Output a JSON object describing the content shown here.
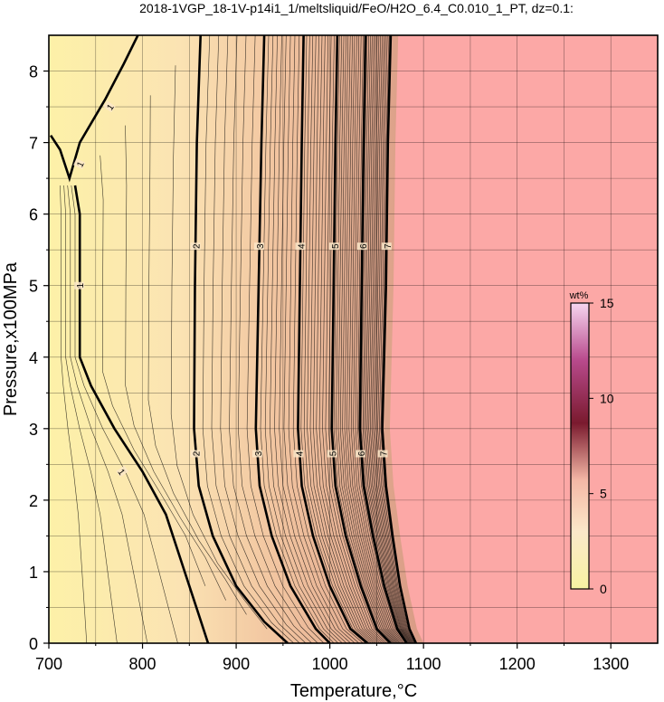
{
  "chart_data": {
    "type": "heatmap",
    "title": "2018-1VGP_18-1V-p14i1_1/meltsliquid/FeO/H2O_6.4_C0.010_1_PT, dz=0.1:",
    "xlabel": "Temperature,°C",
    "ylabel": "Pressure,x100MPa",
    "xlim": [
      700,
      1350
    ],
    "ylim": [
      0,
      8.5
    ],
    "x_ticks": [
      700,
      800,
      900,
      1000,
      1100,
      1200,
      1300
    ],
    "y_ticks": [
      0,
      1,
      2,
      3,
      4,
      5,
      6,
      7,
      8
    ],
    "grid": true,
    "colorbar": {
      "unit": "wt%",
      "range": [
        0,
        15
      ],
      "ticks": [
        0,
        5,
        10,
        15
      ],
      "colors": [
        "#f7f3a2",
        "#fbe8c9",
        "#f4b8a6",
        "#7a1a2e",
        "#b84a8c",
        "#f7d6f0"
      ]
    },
    "background_color": "#fca8a6",
    "contour_interval": 0.1,
    "labeled_contours": [
      {
        "level": 1,
        "points": [
          [
            728,
            6.4
          ],
          [
            733,
            6.0
          ],
          [
            733,
            5.0
          ],
          [
            733,
            4.0
          ],
          [
            745,
            3.6
          ],
          [
            770,
            3.0
          ],
          [
            800,
            2.4
          ],
          [
            825,
            1.8
          ],
          [
            845,
            1.0
          ],
          [
            860,
            0.4
          ],
          [
            870,
            0
          ]
        ]
      },
      {
        "level": 1,
        "points": [
          [
            702,
            7.1
          ],
          [
            712,
            6.9
          ],
          [
            722,
            6.5
          ],
          [
            733,
            7.0
          ],
          [
            760,
            7.6
          ],
          [
            780,
            8.1
          ],
          [
            795,
            8.5
          ]
        ]
      },
      {
        "level": 2,
        "points": [
          [
            862,
            8.5
          ],
          [
            858,
            7.0
          ],
          [
            856,
            5.0
          ],
          [
            855,
            3.0
          ],
          [
            860,
            2.2
          ],
          [
            875,
            1.5
          ],
          [
            900,
            0.8
          ],
          [
            930,
            0.3
          ],
          [
            955,
            0
          ]
        ]
      },
      {
        "level": 3,
        "points": [
          [
            930,
            8.5
          ],
          [
            927,
            7.0
          ],
          [
            924,
            5.0
          ],
          [
            921,
            3.0
          ],
          [
            925,
            2.2
          ],
          [
            938,
            1.5
          ],
          [
            958,
            0.8
          ],
          [
            985,
            0.2
          ],
          [
            1000,
            0
          ]
        ]
      },
      {
        "level": 4,
        "points": [
          [
            972,
            8.5
          ],
          [
            970,
            7.0
          ],
          [
            968,
            5.0
          ],
          [
            966,
            3.0
          ],
          [
            970,
            2.2
          ],
          [
            982,
            1.5
          ],
          [
            1000,
            0.8
          ],
          [
            1022,
            0.2
          ],
          [
            1040,
            0
          ]
        ]
      },
      {
        "level": 5,
        "points": [
          [
            1008,
            8.5
          ],
          [
            1006,
            7.0
          ],
          [
            1004,
            5.0
          ],
          [
            1002,
            3.0
          ],
          [
            1006,
            2.2
          ],
          [
            1017,
            1.5
          ],
          [
            1033,
            0.8
          ],
          [
            1050,
            0.2
          ],
          [
            1065,
            0
          ]
        ]
      },
      {
        "level": 6,
        "points": [
          [
            1038,
            8.5
          ],
          [
            1036,
            7.0
          ],
          [
            1034,
            5.0
          ],
          [
            1032,
            3.0
          ],
          [
            1036,
            2.2
          ],
          [
            1046,
            1.5
          ],
          [
            1058,
            0.8
          ],
          [
            1072,
            0.2
          ],
          [
            1082,
            0
          ]
        ]
      },
      {
        "level": 7,
        "points": [
          [
            1065,
            8.5
          ],
          [
            1062,
            7.0
          ],
          [
            1060,
            5.0
          ],
          [
            1056,
            3.0
          ],
          [
            1060,
            2.2
          ],
          [
            1067,
            1.5
          ],
          [
            1075,
            0.8
          ],
          [
            1085,
            0.2
          ],
          [
            1092,
            0
          ]
        ]
      }
    ],
    "contour_label_positions": [
      {
        "text": "1",
        "x": 765,
        "y": 7.5,
        "angle": -55
      },
      {
        "text": "1",
        "x": 733,
        "y": 6.7,
        "angle": -65
      },
      {
        "text": "1",
        "x": 733,
        "y": 5.0,
        "angle": -90
      },
      {
        "text": "1",
        "x": 778,
        "y": 2.4,
        "angle": 55
      },
      {
        "text": "2",
        "x": 857,
        "y": 5.55,
        "angle": -90
      },
      {
        "text": "2",
        "x": 857,
        "y": 2.65,
        "angle": -90
      },
      {
        "text": "3",
        "x": 925,
        "y": 5.55,
        "angle": -90
      },
      {
        "text": "3",
        "x": 923,
        "y": 2.65,
        "angle": -90
      },
      {
        "text": "4",
        "x": 969,
        "y": 5.55,
        "angle": -90
      },
      {
        "text": "4",
        "x": 967,
        "y": 2.65,
        "angle": -90
      },
      {
        "text": "5",
        "x": 1005,
        "y": 5.55,
        "angle": -90
      },
      {
        "text": "5",
        "x": 1003,
        "y": 2.65,
        "angle": -90
      },
      {
        "text": "6",
        "x": 1035,
        "y": 5.55,
        "angle": -90
      },
      {
        "text": "6",
        "x": 1033,
        "y": 2.65,
        "angle": -90
      },
      {
        "text": "7",
        "x": 1061,
        "y": 5.55,
        "angle": -90
      },
      {
        "text": "7",
        "x": 1057,
        "y": 2.65,
        "angle": -90
      }
    ]
  }
}
